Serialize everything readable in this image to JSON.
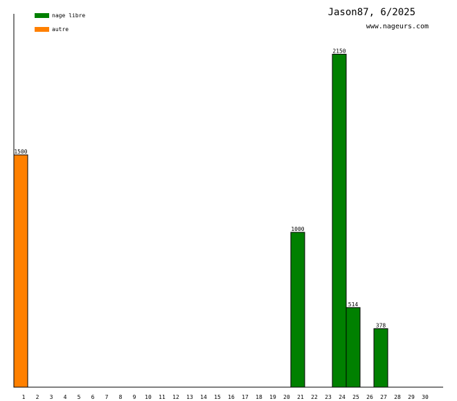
{
  "chart_data": {
    "type": "bar",
    "title": "Jason87, 6/2025",
    "subtitle": "www.nageurs.com",
    "xlabel": "",
    "ylabel": "",
    "categories": [
      "1",
      "2",
      "3",
      "4",
      "5",
      "6",
      "7",
      "8",
      "9",
      "10",
      "11",
      "12",
      "13",
      "14",
      "15",
      "16",
      "17",
      "18",
      "19",
      "20",
      "21",
      "22",
      "23",
      "24",
      "25",
      "26",
      "27",
      "28",
      "29",
      "30"
    ],
    "ylim": [
      0,
      2300
    ],
    "grid": false,
    "legend_position": "top-left",
    "series": [
      {
        "name": "nage libre",
        "color": "#008000",
        "values": [
          0,
          0,
          0,
          0,
          0,
          0,
          0,
          0,
          0,
          0,
          0,
          0,
          0,
          0,
          0,
          0,
          0,
          0,
          0,
          0,
          1000,
          0,
          0,
          2150,
          514,
          0,
          378,
          0,
          0,
          0
        ]
      },
      {
        "name": "autre",
        "color": "#ff8000",
        "values": [
          1500,
          0,
          0,
          0,
          0,
          0,
          0,
          0,
          0,
          0,
          0,
          0,
          0,
          0,
          0,
          0,
          0,
          0,
          0,
          0,
          0,
          0,
          0,
          0,
          0,
          0,
          0,
          0,
          0,
          0
        ]
      }
    ]
  }
}
